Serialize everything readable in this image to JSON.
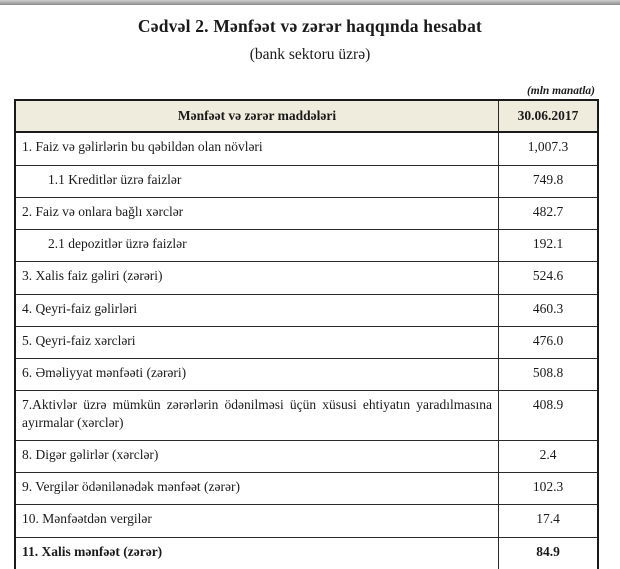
{
  "page": {
    "title": "Cədvəl 2. Mənfəət və zərər haqqında hesabat",
    "subtitle": "(bank sektoru üzrə)",
    "unit_note": "(mln manatla)"
  },
  "colors": {
    "header_bg": "#efecdd",
    "border": "#1a1a1a",
    "top_bar": "#8a8a8a"
  },
  "table": {
    "header": {
      "items_col": "Mənfəət və zərər maddələri",
      "date_col": "30.06.2017"
    },
    "rows": [
      {
        "label": "1. Faiz və gəlirlərin bu qəbildən olan növləri",
        "value": "1,007.3"
      },
      {
        "label": "1.1 Kreditlər üzrə faizlər",
        "value": "749.8"
      },
      {
        "label": "2. Faiz və onlara bağlı xərclər",
        "value": "482.7"
      },
      {
        "label": "2.1 depozitlər üzrə faizlər",
        "value": "192.1"
      },
      {
        "label": "3. Xalis faiz gəliri (zərəri)",
        "value": "524.6"
      },
      {
        "label": "4. Qeyri-faiz gəlirləri",
        "value": "460.3"
      },
      {
        "label": "5. Qeyri-faiz xərcləri",
        "value": "476.0"
      },
      {
        "label": "6. Əməliyyat mənfəəti (zərəri)",
        "value": "508.8"
      },
      {
        "label": "7.Aktivlər üzrə mümkün zərərlərin ödənilməsi üçün xüsusi ehtiyatın yaradılmasına ayırmalar (xərclər)",
        "value": "408.9"
      },
      {
        "label": "8. Digər gəlirlər (xərclər)",
        "value": "2.4"
      },
      {
        "label": "9. Vergilər ödənilənədək mənfəət (zərər)",
        "value": "102.3"
      },
      {
        "label": "10. Mənfəətdən vergilər",
        "value": "17.4"
      },
      {
        "label": "11. Xalis mənfəət (zərər)",
        "value": "84.9"
      }
    ]
  }
}
